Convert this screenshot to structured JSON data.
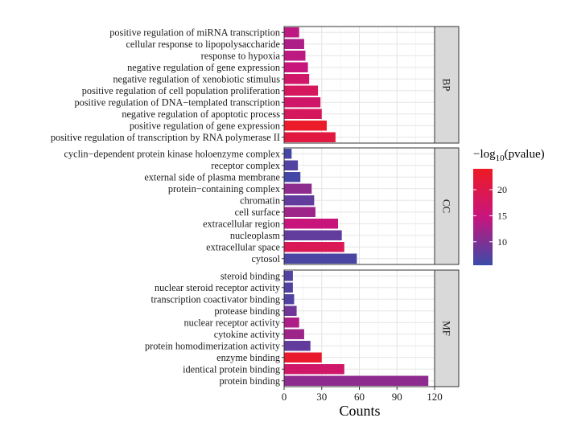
{
  "chart_data": {
    "type": "bar",
    "orientation": "horizontal",
    "xlabel": "Counts",
    "xlim": [
      0,
      120
    ],
    "xticks": [
      0,
      30,
      60,
      90,
      120
    ],
    "grid": true,
    "legend_placement": "right",
    "colorbar": {
      "title_prefix": "−log",
      "title_sub": "10",
      "title_suffix": "(pvalue)",
      "min": 5.5,
      "max": 24,
      "ticks": [
        10,
        15,
        20
      ],
      "color_low": "#3B4BA8",
      "color_mid": "#C7157E",
      "color_high": "#EE1B24"
    },
    "panels": [
      {
        "label": "BP",
        "terms": [
          {
            "term": "positive regulation of transcription by RNA polymerase II",
            "count": 41,
            "neglog10p": 21
          },
          {
            "term": "positive regulation of gene expression",
            "count": 34,
            "neglog10p": 23.5
          },
          {
            "term": "negative regulation of apoptotic process",
            "count": 30,
            "neglog10p": 18
          },
          {
            "term": "positive regulation of DNA−templated transcription",
            "count": 29,
            "neglog10p": 17
          },
          {
            "term": "positive regulation of cell population proliferation",
            "count": 27,
            "neglog10p": 18
          },
          {
            "term": "negative regulation of xenobiotic stimulus",
            "count": 20,
            "neglog10p": 17
          },
          {
            "term": "negative regulation of gene expression",
            "count": 19,
            "neglog10p": 15
          },
          {
            "term": "response to hypoxia",
            "count": 17,
            "neglog10p": 14
          },
          {
            "term": "cellular response to lipopolysaccharide",
            "count": 16,
            "neglog10p": 13
          },
          {
            "term": "positive regulation of miRNA transcription",
            "count": 12,
            "neglog10p": 14
          }
        ]
      },
      {
        "label": "CC",
        "terms": [
          {
            "term": "cytosol",
            "count": 58,
            "neglog10p": 6.5
          },
          {
            "term": "extracellular space",
            "count": 48,
            "neglog10p": 19
          },
          {
            "term": "nucleoplasm",
            "count": 46,
            "neglog10p": 8
          },
          {
            "term": "extracellular region",
            "count": 43,
            "neglog10p": 15
          },
          {
            "term": "cell surface",
            "count": 25,
            "neglog10p": 12
          },
          {
            "term": "chromatin",
            "count": 24,
            "neglog10p": 8
          },
          {
            "term": "protein−containing complex",
            "count": 22,
            "neglog10p": 11
          },
          {
            "term": "external side of plasma membrane",
            "count": 13,
            "neglog10p": 6
          },
          {
            "term": "receptor complex",
            "count": 11,
            "neglog10p": 7
          },
          {
            "term": "cyclin−dependent protein kinase holoenzyme complex",
            "count": 6,
            "neglog10p": 6
          }
        ]
      },
      {
        "label": "MF",
        "terms": [
          {
            "term": "protein binding",
            "count": 115,
            "neglog10p": 11
          },
          {
            "term": "identical protein binding",
            "count": 48,
            "neglog10p": 17
          },
          {
            "term": "enzyme binding",
            "count": 30,
            "neglog10p": 23
          },
          {
            "term": "protein homodimerization activity",
            "count": 21,
            "neglog10p": 8
          },
          {
            "term": "cytokine activity",
            "count": 16,
            "neglog10p": 12
          },
          {
            "term": "nuclear receptor activity",
            "count": 12,
            "neglog10p": 13
          },
          {
            "term": "protease binding",
            "count": 10,
            "neglog10p": 9
          },
          {
            "term": "transcription coactivator binding",
            "count": 8,
            "neglog10p": 7
          },
          {
            "term": "nuclear steroid receptor activity",
            "count": 7,
            "neglog10p": 7
          },
          {
            "term": "steroid binding",
            "count": 7,
            "neglog10p": 7
          }
        ]
      }
    ]
  }
}
